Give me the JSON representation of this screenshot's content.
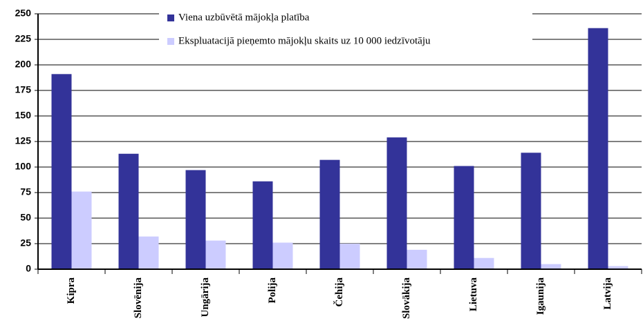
{
  "chart_data": {
    "type": "bar",
    "categories": [
      "Kipra",
      "Slovēnija",
      "Ungārija",
      "Polija",
      "Čehija",
      "Slovākija",
      "Lietuva",
      "Igaunija",
      "Latvija"
    ],
    "series": [
      {
        "name": "Viena uzbūvētā mājokļa platība",
        "color": "#333399",
        "values": [
          191,
          113,
          97,
          86,
          107,
          129,
          101,
          114,
          236
        ]
      },
      {
        "name": "Ekspluatacijā pieņemto mājokļu skaits uz 10 000 iedzīvotāju",
        "color": "#ccccff",
        "values": [
          76,
          32,
          28,
          26,
          25,
          19,
          11,
          5,
          3
        ]
      }
    ],
    "ylim": [
      0,
      250
    ],
    "yticks": [
      0,
      25,
      50,
      75,
      100,
      125,
      150,
      175,
      200,
      225,
      250
    ],
    "grid": true
  }
}
